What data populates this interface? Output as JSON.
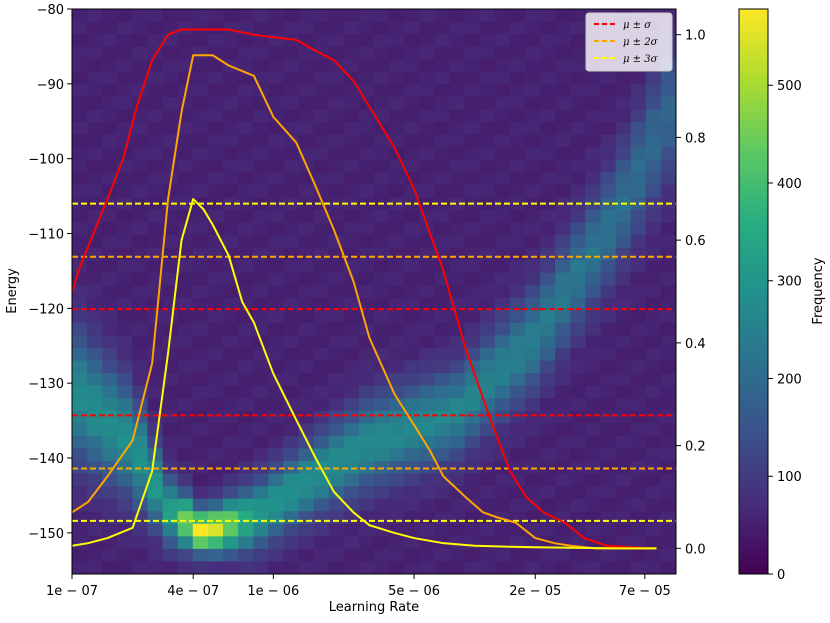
{
  "chart_data": {
    "type": "heatmap",
    "title": "",
    "xlabel": "Learning Rate",
    "ylabel": "Energy",
    "colorbar_label": "Frequency",
    "x_scale": "log",
    "xlim": [
      1e-07,
      0.0001
    ],
    "ylim": [
      -155.5,
      -80
    ],
    "y2lim": [
      -0.05,
      1.05
    ],
    "colorbar_range": [
      0,
      578
    ],
    "colormap": "viridis",
    "x_ticks": [
      {
        "value": 1e-07,
        "label": "1e − 07"
      },
      {
        "value": 4e-07,
        "label": "4e − 07"
      },
      {
        "value": 1e-06,
        "label": "1e − 06"
      },
      {
        "value": 5e-06,
        "label": "5e − 06"
      },
      {
        "value": 2e-05,
        "label": "2e − 05"
      },
      {
        "value": 7e-05,
        "label": "7e − 05"
      }
    ],
    "y_ticks": [
      {
        "value": -80,
        "label": "−80"
      },
      {
        "value": -90,
        "label": "−90"
      },
      {
        "value": -100,
        "label": "−100"
      },
      {
        "value": -110,
        "label": "−110"
      },
      {
        "value": -120,
        "label": "−120"
      },
      {
        "value": -130,
        "label": "−130"
      },
      {
        "value": -140,
        "label": "−140"
      },
      {
        "value": -150,
        "label": "−150"
      }
    ],
    "y2_ticks": [
      {
        "value": 0.0,
        "label": "0.0"
      },
      {
        "value": 0.2,
        "label": "0.2"
      },
      {
        "value": 0.4,
        "label": "0.4"
      },
      {
        "value": 0.6,
        "label": "0.6"
      },
      {
        "value": 0.8,
        "label": "0.8"
      },
      {
        "value": 1.0,
        "label": "1.0"
      }
    ],
    "colorbar_ticks": [
      {
        "value": 0,
        "label": "0"
      },
      {
        "value": 100,
        "label": "100"
      },
      {
        "value": 200,
        "label": "200"
      },
      {
        "value": 300,
        "label": "300"
      },
      {
        "value": 400,
        "label": "400"
      },
      {
        "value": 500,
        "label": "500"
      }
    ],
    "heatmap": {
      "x_bins": 40,
      "y_bins": 45,
      "ridge": [
        {
          "lr": 1e-07,
          "energy": -131,
          "width": 6,
          "peak": 220
        },
        {
          "lr": 2e-07,
          "energy": -138,
          "width": 5,
          "peak": 230
        },
        {
          "lr": 3e-07,
          "energy": -147,
          "width": 3,
          "peak": 260
        },
        {
          "lr": 4.5e-07,
          "energy": -150,
          "width": 1.8,
          "peak": 560
        },
        {
          "lr": 8e-07,
          "energy": -148,
          "width": 3,
          "peak": 260
        },
        {
          "lr": 1.5e-06,
          "energy": -143,
          "width": 3.5,
          "peak": 230
        },
        {
          "lr": 3e-06,
          "energy": -138,
          "width": 4,
          "peak": 220
        },
        {
          "lr": 8e-06,
          "energy": -134,
          "width": 4,
          "peak": 210
        },
        {
          "lr": 2e-05,
          "energy": -124,
          "width": 4.5,
          "peak": 190
        },
        {
          "lr": 5e-05,
          "energy": -108,
          "width": 5,
          "peak": 160
        },
        {
          "lr": 0.0001,
          "energy": -92,
          "width": 6,
          "peak": 130
        }
      ]
    },
    "hlines": [
      {
        "series": "μ ± σ",
        "energy": -120.1,
        "color": "#ff0000"
      },
      {
        "series": "μ ± σ",
        "energy": -134.3,
        "color": "#ff0000"
      },
      {
        "series": "μ ± 2σ",
        "energy": -113.1,
        "color": "#ffa500"
      },
      {
        "series": "μ ± 2σ",
        "energy": -141.4,
        "color": "#ffa500"
      },
      {
        "series": "μ ± 3σ",
        "energy": -106.0,
        "color": "#ffff00"
      },
      {
        "series": "μ ± 3σ",
        "energy": -148.4,
        "color": "#ffff00"
      }
    ],
    "series": [
      {
        "name": "μ ± σ",
        "color": "#ff0000",
        "x": [
          1e-07,
          1.1e-07,
          1.3e-07,
          1.5e-07,
          1.8e-07,
          2.1e-07,
          2.5e-07,
          3e-07,
          3.5e-07,
          4e-07,
          5e-07,
          6e-07,
          8e-07,
          1e-06,
          1.3e-06,
          1.6e-06,
          2e-06,
          2.5e-06,
          3e-06,
          4e-06,
          5e-06,
          7e-06,
          9e-06,
          1.2e-05,
          1.5e-05,
          1.8e-05,
          2.2e-05,
          2.8e-05,
          3.5e-05,
          4.5e-05,
          6e-05,
          8e-05
        ],
        "values": [
          0.5,
          0.55,
          0.62,
          0.68,
          0.76,
          0.86,
          0.95,
          1.0,
          1.01,
          1.01,
          1.01,
          1.01,
          1.0,
          0.995,
          0.99,
          0.97,
          0.95,
          0.91,
          0.86,
          0.78,
          0.7,
          0.54,
          0.39,
          0.25,
          0.15,
          0.1,
          0.07,
          0.05,
          0.02,
          0.005,
          0.002,
          0.0
        ]
      },
      {
        "name": "μ ± 2σ",
        "color": "#ffa500",
        "x": [
          1e-07,
          1.2e-07,
          1.5e-07,
          2e-07,
          2.5e-07,
          3e-07,
          3.5e-07,
          4e-07,
          5e-07,
          6e-07,
          8e-07,
          1e-06,
          1.3e-06,
          1.6e-06,
          2e-06,
          2.5e-06,
          3e-06,
          4e-06,
          5e-06,
          6e-06,
          7e-06,
          9e-06,
          1.1e-05,
          1.3e-05,
          1.6e-05,
          2e-05,
          2.5e-05,
          3e-05,
          4e-05,
          6e-05,
          8e-05
        ],
        "values": [
          0.07,
          0.09,
          0.14,
          0.21,
          0.36,
          0.68,
          0.85,
          0.96,
          0.96,
          0.94,
          0.92,
          0.84,
          0.79,
          0.71,
          0.62,
          0.52,
          0.41,
          0.3,
          0.24,
          0.19,
          0.14,
          0.1,
          0.07,
          0.06,
          0.05,
          0.02,
          0.01,
          0.005,
          0.0,
          0.0,
          0.0
        ]
      },
      {
        "name": "μ ± 3σ",
        "color": "#ffff00",
        "x": [
          1e-07,
          1.2e-07,
          1.5e-07,
          2e-07,
          2.5e-07,
          3e-07,
          3.5e-07,
          4e-07,
          4.5e-07,
          5e-07,
          6e-07,
          7e-07,
          8e-07,
          1e-06,
          1.3e-06,
          1.6e-06,
          2e-06,
          2.5e-06,
          3e-06,
          4e-06,
          5e-06,
          7e-06,
          1e-05,
          1.5e-05,
          2e-05,
          3e-05,
          5e-05,
          8e-05
        ],
        "values": [
          0.005,
          0.01,
          0.02,
          0.04,
          0.15,
          0.38,
          0.6,
          0.68,
          0.66,
          0.63,
          0.57,
          0.48,
          0.44,
          0.34,
          0.25,
          0.18,
          0.11,
          0.07,
          0.045,
          0.03,
          0.02,
          0.01,
          0.005,
          0.003,
          0.002,
          0.001,
          0.0,
          0.0
        ]
      }
    ],
    "legend": {
      "placement": "top-right",
      "entries": [
        {
          "label": "μ ± σ",
          "color": "#ff0000"
        },
        {
          "label": "μ ± 2σ",
          "color": "#ffa500"
        },
        {
          "label": "μ ± 3σ",
          "color": "#ffff00"
        }
      ]
    }
  }
}
